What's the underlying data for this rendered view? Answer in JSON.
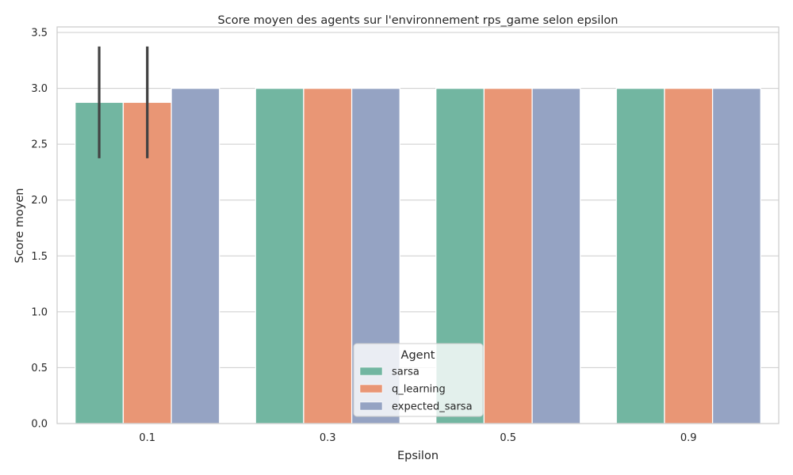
{
  "chart_data": {
    "type": "bar",
    "title": "Score moyen des agents sur l'environnement rps_game selon epsilon",
    "xlabel": "Epsilon",
    "ylabel": "Score moyen",
    "categories": [
      "0.1",
      "0.3",
      "0.5",
      "0.9"
    ],
    "ylim": [
      0,
      3.55
    ],
    "yticks": [
      "0.0",
      "0.5",
      "1.0",
      "1.5",
      "2.0",
      "2.5",
      "3.0",
      "3.5"
    ],
    "grid": true,
    "legend": {
      "title": "Agent",
      "placement": "bottom-center"
    },
    "series": [
      {
        "name": "sarsa",
        "color": "#72b6a1",
        "values": [
          2.875,
          3.0,
          3.0,
          3.0
        ],
        "error": [
          [
            2.375,
            3.375
          ],
          null,
          null,
          null
        ]
      },
      {
        "name": "q_learning",
        "color": "#e99675",
        "values": [
          2.875,
          3.0,
          3.0,
          3.0
        ],
        "error": [
          [
            2.375,
            3.375
          ],
          null,
          null,
          null
        ]
      },
      {
        "name": "expected_sarsa",
        "color": "#95a3c3",
        "values": [
          3.0,
          3.0,
          3.0,
          3.0
        ],
        "error": [
          null,
          null,
          null,
          null
        ]
      }
    ]
  }
}
